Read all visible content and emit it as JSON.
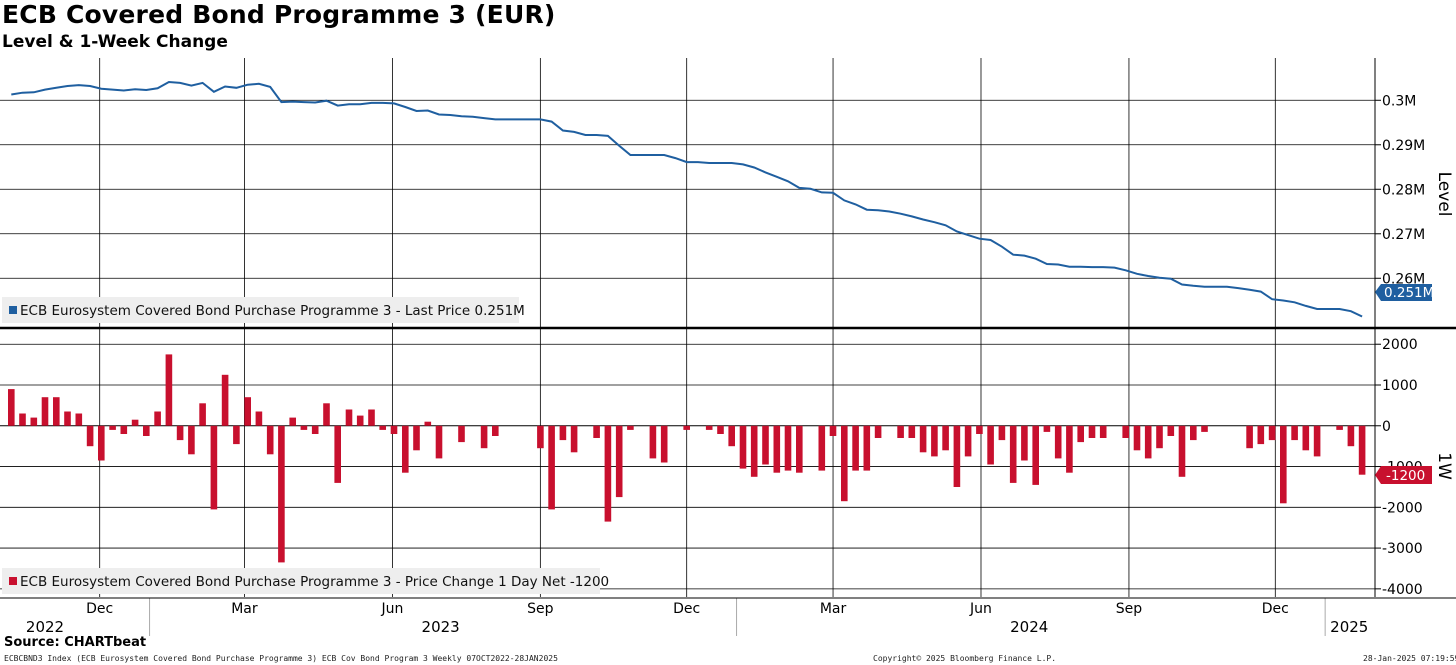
{
  "title": "ECB Covered Bond Programme 3 (EUR)",
  "subtitle": "Level & 1-Week Change",
  "source": "Source: CHARTbeat",
  "footer": {
    "left": "ECBCBND3 Index (ECB Eurosystem Covered Bond Purchase Programme 3) ECB Cov Bond Program 3  Weekly 07OCT2022-28JAN2025",
    "center": "Copyright© 2025 Bloomberg Finance L.P.",
    "right": "28-Jan-2025 07:19:59"
  },
  "x_axis": {
    "months": [
      "Dec",
      "Mar",
      "Jun",
      "Sep",
      "Dec",
      "Mar",
      "Jun",
      "Sep",
      "Dec"
    ],
    "years": [
      "2022",
      "2023",
      "2024",
      "2025"
    ]
  },
  "colors": {
    "level": "#1f5fa0",
    "change": "#c8102e"
  },
  "chart_data": [
    {
      "type": "line",
      "panel": "top",
      "ylabel": "Level",
      "y_ticks": [
        "0.3M",
        "0.29M",
        "0.28M",
        "0.27M",
        "0.26M"
      ],
      "ylim": [
        0.2495,
        0.3095
      ],
      "unit": "M EUR",
      "legend": "ECB Eurosystem Covered Bond Purchase Programme 3 - Last Price 0.251M",
      "last_value_label": "0.251M",
      "x": [
        "2022-10-07",
        "2022-10-14",
        "2022-10-21",
        "2022-10-28",
        "2022-11-04",
        "2022-11-11",
        "2022-11-18",
        "2022-11-25",
        "2022-12-02",
        "2022-12-09",
        "2022-12-16",
        "2022-12-23",
        "2022-12-30",
        "2023-01-06",
        "2023-01-13",
        "2023-01-20",
        "2023-01-27",
        "2023-02-03",
        "2023-02-10",
        "2023-02-17",
        "2023-02-24",
        "2023-03-03",
        "2023-03-10",
        "2023-03-17",
        "2023-03-24",
        "2023-03-31",
        "2023-04-07",
        "2023-04-14",
        "2023-04-21",
        "2023-04-28",
        "2023-05-05",
        "2023-05-12",
        "2023-05-19",
        "2023-05-26",
        "2023-06-02",
        "2023-06-09",
        "2023-06-16",
        "2023-06-23",
        "2023-06-30",
        "2023-07-07",
        "2023-07-14",
        "2023-07-21",
        "2023-07-28",
        "2023-08-04",
        "2023-08-11",
        "2023-08-18",
        "2023-08-25",
        "2023-09-01",
        "2023-09-08",
        "2023-09-15",
        "2023-09-22",
        "2023-09-29",
        "2023-10-06",
        "2023-10-13",
        "2023-10-20",
        "2023-10-27",
        "2023-11-03",
        "2023-11-10",
        "2023-11-17",
        "2023-11-24",
        "2023-12-01",
        "2023-12-08",
        "2023-12-15",
        "2023-12-22",
        "2023-12-29",
        "2024-01-05",
        "2024-01-12",
        "2024-01-19",
        "2024-01-26",
        "2024-02-02",
        "2024-02-09",
        "2024-02-16",
        "2024-02-23",
        "2024-03-01",
        "2024-03-08",
        "2024-03-15",
        "2024-03-22",
        "2024-03-29",
        "2024-04-05",
        "2024-04-12",
        "2024-04-19",
        "2024-04-26",
        "2024-05-03",
        "2024-05-10",
        "2024-05-17",
        "2024-05-24",
        "2024-05-31",
        "2024-06-07",
        "2024-06-14",
        "2024-06-21",
        "2024-06-28",
        "2024-07-05",
        "2024-07-12",
        "2024-07-19",
        "2024-07-26",
        "2024-08-02",
        "2024-08-09",
        "2024-08-16",
        "2024-08-23",
        "2024-08-30",
        "2024-09-06",
        "2024-09-13",
        "2024-09-20",
        "2024-09-27",
        "2024-10-04",
        "2024-10-11",
        "2024-10-18",
        "2024-10-25",
        "2024-11-01",
        "2024-11-08",
        "2024-11-15",
        "2024-11-22",
        "2024-11-29",
        "2024-12-06",
        "2024-12-13",
        "2024-12-20",
        "2024-12-27",
        "2025-01-03",
        "2025-01-10",
        "2025-01-17",
        "2025-01-24"
      ],
      "values": [
        0.3013,
        0.3017,
        0.3018,
        0.3024,
        0.3028,
        0.3032,
        0.3034,
        0.3032,
        0.3026,
        0.3024,
        0.3022,
        0.3025,
        0.3023,
        0.3027,
        0.3041,
        0.3039,
        0.3033,
        0.3039,
        0.3019,
        0.3031,
        0.3028,
        0.3035,
        0.3037,
        0.303,
        0.2996,
        0.2997,
        0.2996,
        0.2995,
        0.2999,
        0.2988,
        0.2991,
        0.2991,
        0.2994,
        0.2994,
        0.2993,
        0.2985,
        0.2976,
        0.2977,
        0.2968,
        0.2967,
        0.2964,
        0.2963,
        0.296,
        0.2957,
        0.2957,
        0.2957,
        0.2957,
        0.2957,
        0.2952,
        0.2932,
        0.2929,
        0.2922,
        0.2922,
        0.292,
        0.2898,
        0.2877,
        0.2877,
        0.2877,
        0.2877,
        0.287,
        0.2861,
        0.2861,
        0.2859,
        0.2859,
        0.2859,
        0.2856,
        0.2849,
        0.2838,
        0.2828,
        0.2818,
        0.2803,
        0.2801,
        0.2793,
        0.2792,
        0.2775,
        0.2766,
        0.2754,
        0.2753,
        0.275,
        0.2745,
        0.2739,
        0.2732,
        0.2726,
        0.2719,
        0.2705,
        0.2697,
        0.2689,
        0.2686,
        0.2671,
        0.2653,
        0.2651,
        0.2644,
        0.2632,
        0.2631,
        0.2626,
        0.2626,
        0.2625,
        0.2625,
        0.2624,
        0.2618,
        0.261,
        0.2605,
        0.2601,
        0.2599,
        0.2586,
        0.2583,
        0.2581,
        0.2581,
        0.2581,
        0.2578,
        0.2574,
        0.257,
        0.2553,
        0.255,
        0.2546,
        0.2538,
        0.2531,
        0.2531,
        0.2531,
        0.2526,
        0.2514
      ]
    },
    {
      "type": "bar",
      "panel": "bottom",
      "ylabel": "1W",
      "y_ticks": [
        "2000",
        "1000",
        "0",
        "-1000",
        "-2000",
        "-3000",
        "-4000"
      ],
      "ylim": [
        -4200,
        2300
      ],
      "legend": "ECB Eurosystem Covered Bond Purchase Programme 3 - Price Change 1 Day Net -1200",
      "last_value_label": "-1200",
      "x": [
        "2022-10-07",
        "2022-10-14",
        "2022-10-21",
        "2022-10-28",
        "2022-11-04",
        "2022-11-11",
        "2022-11-18",
        "2022-11-25",
        "2022-12-02",
        "2022-12-09",
        "2022-12-16",
        "2022-12-23",
        "2022-12-30",
        "2023-01-06",
        "2023-01-13",
        "2023-01-20",
        "2023-01-27",
        "2023-02-03",
        "2023-02-10",
        "2023-02-17",
        "2023-02-24",
        "2023-03-03",
        "2023-03-10",
        "2023-03-17",
        "2023-03-24",
        "2023-03-31",
        "2023-04-07",
        "2023-04-14",
        "2023-04-21",
        "2023-04-28",
        "2023-05-05",
        "2023-05-12",
        "2023-05-19",
        "2023-05-26",
        "2023-06-02",
        "2023-06-09",
        "2023-06-16",
        "2023-06-23",
        "2023-06-30",
        "2023-07-07",
        "2023-07-14",
        "2023-07-21",
        "2023-07-28",
        "2023-08-04",
        "2023-08-11",
        "2023-08-18",
        "2023-08-25",
        "2023-09-01",
        "2023-09-08",
        "2023-09-15",
        "2023-09-22",
        "2023-09-29",
        "2023-10-06",
        "2023-10-13",
        "2023-10-20",
        "2023-10-27",
        "2023-11-03",
        "2023-11-10",
        "2023-11-17",
        "2023-11-24",
        "2023-12-01",
        "2023-12-08",
        "2023-12-15",
        "2023-12-22",
        "2023-12-29",
        "2024-01-05",
        "2024-01-12",
        "2024-01-19",
        "2024-01-26",
        "2024-02-02",
        "2024-02-09",
        "2024-02-16",
        "2024-02-23",
        "2024-03-01",
        "2024-03-08",
        "2024-03-15",
        "2024-03-22",
        "2024-03-29",
        "2024-04-05",
        "2024-04-12",
        "2024-04-19",
        "2024-04-26",
        "2024-05-03",
        "2024-05-10",
        "2024-05-17",
        "2024-05-24",
        "2024-05-31",
        "2024-06-07",
        "2024-06-14",
        "2024-06-21",
        "2024-06-28",
        "2024-07-05",
        "2024-07-12",
        "2024-07-19",
        "2024-07-26",
        "2024-08-02",
        "2024-08-09",
        "2024-08-16",
        "2024-08-23",
        "2024-08-30",
        "2024-09-06",
        "2024-09-13",
        "2024-09-20",
        "2024-09-27",
        "2024-10-04",
        "2024-10-11",
        "2024-10-18",
        "2024-10-25",
        "2024-11-01",
        "2024-11-08",
        "2024-11-15",
        "2024-11-22",
        "2024-11-29",
        "2024-12-06",
        "2024-12-13",
        "2024-12-20",
        "2024-12-27",
        "2025-01-03",
        "2025-01-10",
        "2025-01-17",
        "2025-01-24"
      ],
      "values": [
        900,
        300,
        200,
        700,
        700,
        350,
        300,
        -500,
        -850,
        -100,
        -200,
        150,
        -250,
        350,
        1750,
        -350,
        -700,
        550,
        -2050,
        1250,
        -450,
        700,
        350,
        -700,
        -3350,
        200,
        -100,
        -200,
        550,
        -1400,
        400,
        250,
        400,
        -100,
        -200,
        -1150,
        -600,
        100,
        -800,
        0,
        -400,
        0,
        -550,
        -250,
        0,
        0,
        0,
        -550,
        -2050,
        -350,
        -650,
        0,
        -300,
        -2350,
        -1750,
        -100,
        0,
        -800,
        -900,
        0,
        -100,
        0,
        -100,
        -200,
        -500,
        -1050,
        -1250,
        -950,
        -1150,
        -1100,
        -1150,
        0,
        -1100,
        -250,
        -1850,
        -1100,
        -1100,
        -300,
        0,
        -300,
        -300,
        -650,
        -750,
        -600,
        -1500,
        -750,
        -200,
        -950,
        -350,
        -1400,
        -850,
        -1450,
        -150,
        -800,
        -1150,
        -400,
        -300,
        -300,
        0,
        -300,
        -600,
        -800,
        -550,
        -250,
        -1250,
        -350,
        -150,
        0,
        0,
        0,
        -550,
        -450,
        -350,
        -1900,
        -350,
        -600,
        -750,
        0,
        -100,
        -500,
        -1200
      ]
    }
  ]
}
